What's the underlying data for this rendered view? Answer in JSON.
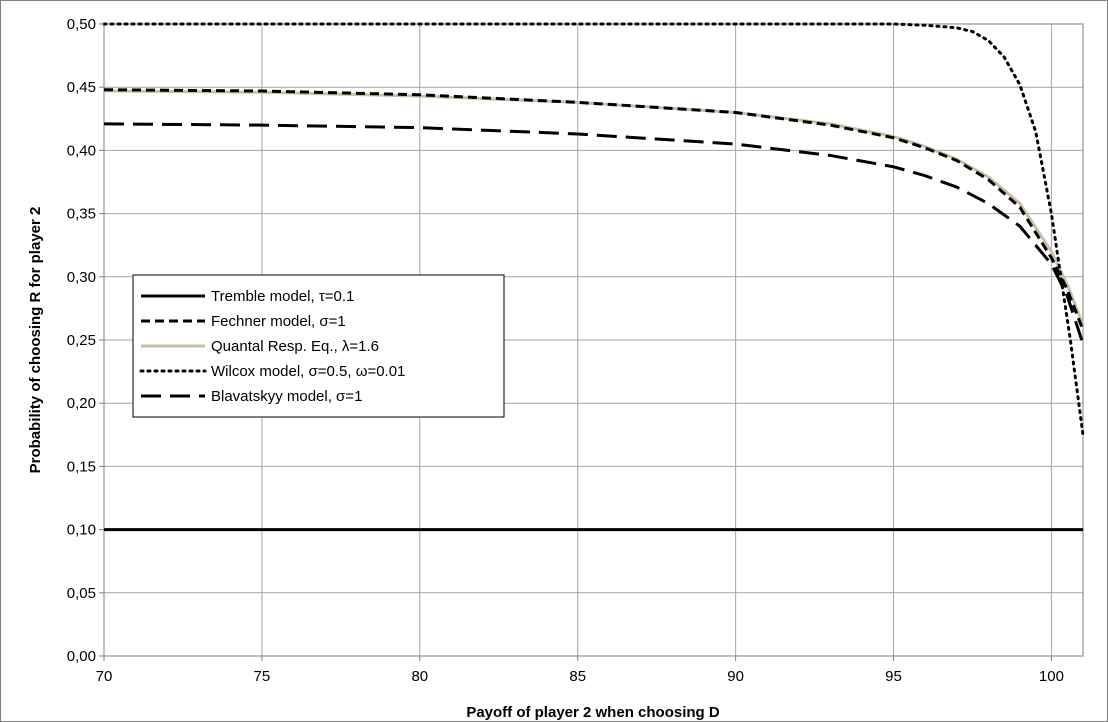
{
  "chart_data": {
    "type": "line",
    "title": "",
    "xlabel": "Payoff of player 2 when choosing D",
    "ylabel": "Probability of choosing R for player 2",
    "xlim": [
      70,
      101
    ],
    "ylim": [
      0,
      0.5
    ],
    "x_ticks": [
      70,
      75,
      80,
      85,
      90,
      95,
      100
    ],
    "x_tick_labels": [
      "70",
      "75",
      "80",
      "85",
      "90",
      "95",
      "100"
    ],
    "y_ticks": [
      0,
      0.05,
      0.1,
      0.15,
      0.2,
      0.25,
      0.3,
      0.35,
      0.4,
      0.45,
      0.5
    ],
    "y_tick_labels": [
      "0,00",
      "0,05",
      "0,10",
      "0,15",
      "0,20",
      "0,25",
      "0,30",
      "0,35",
      "0,40",
      "0,45",
      "0,50"
    ],
    "grid": true,
    "legend_position": "left-middle",
    "series": [
      {
        "name": "Tremble model, τ=0.1",
        "style": "solid",
        "color": "#000000",
        "x": [
          70,
          101
        ],
        "y": [
          0.1,
          0.1
        ]
      },
      {
        "name": "Fechner model, σ=1",
        "style": "dashed",
        "color": "#000000",
        "x": [
          70,
          75,
          80,
          85,
          90,
          93,
          95,
          96,
          97,
          98,
          99,
          100,
          100.5,
          101
        ],
        "y": [
          0.448,
          0.447,
          0.444,
          0.438,
          0.43,
          0.42,
          0.41,
          0.402,
          0.392,
          0.377,
          0.355,
          0.315,
          0.29,
          0.258
        ]
      },
      {
        "name": "Quantal Resp. Eq., λ=1.6",
        "style": "solid",
        "color": "#c9bfa6",
        "x": [
          70,
          75,
          80,
          85,
          90,
          93,
          95,
          96,
          97,
          98,
          99,
          100,
          100.5,
          101
        ],
        "y": [
          0.447,
          0.446,
          0.443,
          0.438,
          0.43,
          0.421,
          0.411,
          0.403,
          0.393,
          0.379,
          0.358,
          0.32,
          0.294,
          0.262
        ]
      },
      {
        "name": "Wilcox model, σ=0.5, ω=0.01",
        "style": "dotted",
        "color": "#000000",
        "x": [
          70,
          80,
          90,
          95,
          96,
          97,
          97.5,
          98,
          98.5,
          99,
          99.5,
          100,
          100.3,
          100.6,
          101
        ],
        "y": [
          0.5,
          0.5,
          0.5,
          0.5,
          0.499,
          0.497,
          0.494,
          0.487,
          0.474,
          0.452,
          0.415,
          0.35,
          0.3,
          0.25,
          0.175
        ]
      },
      {
        "name": "Blavatskyy model, σ=1",
        "style": "longdash",
        "color": "#000000",
        "x": [
          70,
          75,
          80,
          85,
          90,
          93,
          95,
          96,
          97,
          98,
          99,
          100,
          100.5,
          101
        ],
        "y": [
          0.421,
          0.42,
          0.418,
          0.413,
          0.405,
          0.396,
          0.387,
          0.38,
          0.371,
          0.358,
          0.34,
          0.31,
          0.285,
          0.247
        ]
      }
    ]
  }
}
